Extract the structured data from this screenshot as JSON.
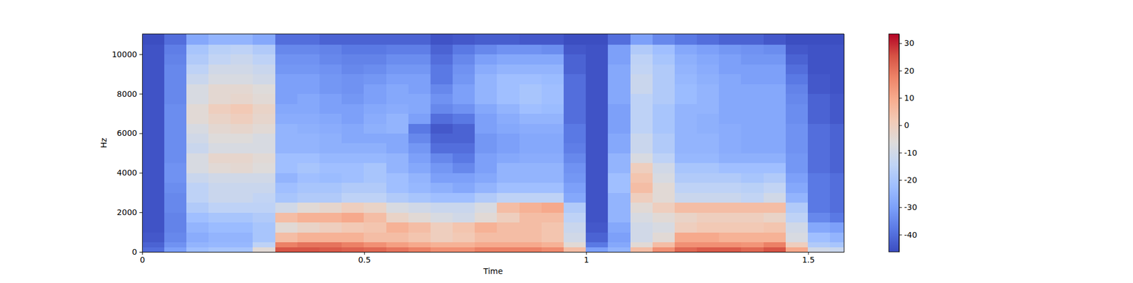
{
  "chart_data": {
    "type": "heatmap",
    "xlabel": "Time",
    "ylabel": "Hz",
    "xlim": [
      0,
      1.581
    ],
    "ylim": [
      0,
      11025
    ],
    "xticks": [
      0,
      0.5,
      1,
      1.5
    ],
    "yticks": [
      0,
      2000,
      4000,
      6000,
      8000,
      10000
    ],
    "colorbar_lim": [
      -46.3,
      33.4
    ],
    "colorbar_ticks": [
      -40,
      -30,
      -20,
      -10,
      0,
      10,
      20,
      30
    ],
    "x": [
      0,
      0.05,
      0.1,
      0.15,
      0.2,
      0.25,
      0.3,
      0.35,
      0.4,
      0.45,
      0.5,
      0.55,
      0.6,
      0.65,
      0.7,
      0.75,
      0.8,
      0.85,
      0.9,
      0.95,
      1.0,
      1.05,
      1.1,
      1.15,
      1.2,
      1.25,
      1.3,
      1.35,
      1.4,
      1.45,
      1.5,
      1.55
    ],
    "y": [
      0,
      250,
      500,
      1000,
      1500,
      2000,
      2500,
      3000,
      3500,
      4000,
      4500,
      5000,
      5500,
      6000,
      6500,
      7000,
      7500,
      8000,
      8500,
      9000,
      9500,
      10000,
      10500
    ],
    "z": [
      [
        -40,
        -42,
        -44,
        -45,
        -45,
        -45,
        -45,
        -45,
        -45,
        -45,
        -45,
        -45,
        -45,
        -45,
        -45,
        -45,
        -45,
        -45,
        -45,
        -45,
        -45,
        -45,
        -46
      ],
      [
        -30,
        -33,
        -35,
        -36,
        -36,
        -35,
        -35,
        -34,
        -33,
        -33,
        -34,
        -34,
        -34,
        -34,
        -34,
        -34,
        -35,
        -35,
        -35,
        -35,
        -36,
        -37,
        -40
      ],
      [
        -22,
        -25,
        -27,
        -25,
        -22,
        -18,
        -15,
        -15,
        -12,
        -8,
        -8,
        -12,
        -10,
        -8,
        -5,
        -5,
        -8,
        -8,
        -12,
        -15,
        -18,
        -20,
        -28
      ],
      [
        -20,
        -24,
        -25,
        -23,
        -20,
        -15,
        -12,
        -12,
        -10,
        -5,
        -3,
        -8,
        -6,
        -4,
        -2,
        0,
        -4,
        -4,
        -8,
        -10,
        -14,
        -16,
        -25
      ],
      [
        -20,
        -24,
        -25,
        -23,
        -20,
        -15,
        -12,
        -12,
        -10,
        -4,
        -3,
        -8,
        -6,
        -3,
        0,
        2,
        -3,
        -4,
        -8,
        -10,
        -12,
        -15,
        -25
      ],
      [
        -5,
        -15,
        -20,
        -20,
        -18,
        -15,
        -14,
        -12,
        -10,
        -6,
        -5,
        -8,
        -8,
        -5,
        -3,
        -2,
        -5,
        -6,
        -10,
        -12,
        -15,
        -18,
        -28
      ],
      [
        25,
        18,
        5,
        -5,
        5,
        -10,
        -20,
        -22,
        -25,
        -22,
        -22,
        -25,
        -25,
        -25,
        -27,
        -28,
        -30,
        -30,
        -30,
        -32,
        -33,
        -35,
        -40
      ],
      [
        25,
        20,
        8,
        -2,
        8,
        -5,
        -18,
        -20,
        -22,
        -20,
        -22,
        -25,
        -25,
        -26,
        -27,
        -28,
        -28,
        -30,
        -30,
        -32,
        -33,
        -35,
        -40
      ],
      [
        24,
        20,
        8,
        0,
        8,
        -3,
        -18,
        -20,
        -23,
        -22,
        -24,
        -26,
        -26,
        -27,
        -28,
        -30,
        -30,
        -32,
        -32,
        -33,
        -35,
        -36,
        -42
      ],
      [
        23,
        18,
        8,
        2,
        10,
        0,
        -15,
        -18,
        -22,
        -22,
        -24,
        -26,
        -28,
        -28,
        -30,
        -30,
        -32,
        -33,
        -33,
        -35,
        -36,
        -38,
        -42
      ],
      [
        22,
        15,
        5,
        3,
        5,
        -2,
        -15,
        -18,
        -20,
        -20,
        -24,
        -26,
        -28,
        -26,
        -27,
        -28,
        -30,
        -30,
        -32,
        -34,
        -36,
        -38,
        -42
      ],
      [
        20,
        12,
        5,
        8,
        -2,
        -8,
        -18,
        -22,
        -22,
        -25,
        -25,
        -28,
        -28,
        -25,
        -25,
        -27,
        -28,
        -28,
        -30,
        -32,
        -34,
        -37,
        -42
      ],
      [
        18,
        10,
        3,
        5,
        -5,
        -10,
        -20,
        -24,
        -25,
        -28,
        -30,
        -32,
        -35,
        -38,
        -30,
        -28,
        -28,
        -30,
        -30,
        -32,
        -34,
        -37,
        -42
      ],
      [
        15,
        8,
        0,
        0,
        -8,
        -12,
        -22,
        -26,
        -30,
        -32,
        -35,
        -40,
        -42,
        -44,
        -40,
        -35,
        -33,
        -35,
        -38,
        -38,
        -40,
        -42,
        -45
      ],
      [
        15,
        8,
        2,
        3,
        -10,
        -12,
        -22,
        -28,
        -30,
        -35,
        -38,
        -40,
        -42,
        -42,
        -38,
        -33,
        -30,
        -30,
        -32,
        -33,
        -35,
        -38,
        -44
      ],
      [
        18,
        10,
        5,
        8,
        -5,
        -8,
        -18,
        -25,
        -28,
        -30,
        -30,
        -32,
        -32,
        -30,
        -30,
        -28,
        -25,
        -25,
        -25,
        -27,
        -30,
        -35,
        -43
      ],
      [
        18,
        10,
        5,
        5,
        0,
        5,
        -15,
        -22,
        -25,
        -25,
        -28,
        -30,
        -30,
        -28,
        -27,
        -25,
        -22,
        -22,
        -22,
        -25,
        -28,
        -33,
        -43
      ],
      [
        18,
        10,
        5,
        5,
        5,
        8,
        -15,
        -22,
        -25,
        -25,
        -27,
        -28,
        -28,
        -27,
        -25,
        -22,
        -20,
        -20,
        -22,
        -25,
        -28,
        -33,
        -44
      ],
      [
        16,
        8,
        3,
        3,
        5,
        10,
        -15,
        -22,
        -25,
        -25,
        -27,
        -28,
        -28,
        -27,
        -25,
        -23,
        -22,
        -22,
        -23,
        -25,
        -28,
        -34,
        -44
      ],
      [
        5,
        -5,
        -10,
        -12,
        -15,
        -18,
        -28,
        -30,
        -32,
        -33,
        -35,
        -37,
        -38,
        -38,
        -40,
        -40,
        -40,
        -40,
        -40,
        -42,
        -42,
        -44,
        -46
      ],
      [
        -30,
        -38,
        -42,
        -44,
        -45,
        -45,
        -45,
        -45,
        -45,
        -45,
        -45,
        -45,
        -45,
        -45,
        -45,
        -45,
        -45,
        -45,
        -45,
        -45,
        -45,
        -45,
        -46
      ],
      [
        -25,
        -28,
        -30,
        -28,
        -25,
        -25,
        -25,
        -22,
        -22,
        -25,
        -25,
        -28,
        -28,
        -30,
        -30,
        -30,
        -28,
        -28,
        -28,
        -28,
        -30,
        -30,
        -40
      ],
      [
        5,
        -5,
        -10,
        -10,
        -8,
        -5,
        0,
        5,
        3,
        0,
        -8,
        -12,
        -12,
        -15,
        -15,
        -15,
        -15,
        -12,
        -12,
        -14,
        -15,
        -18,
        -30
      ],
      [
        15,
        5,
        -5,
        -8,
        -5,
        0,
        -5,
        -5,
        -8,
        -10,
        -15,
        -18,
        -18,
        -20,
        -20,
        -20,
        -18,
        -18,
        -18,
        -18,
        -20,
        -22,
        -35
      ],
      [
        22,
        15,
        10,
        0,
        -2,
        5,
        -12,
        -15,
        -18,
        -20,
        -24,
        -25,
        -25,
        -25,
        -25,
        -25,
        -23,
        -23,
        -24,
        -25,
        -26,
        -28,
        -38
      ],
      [
        24,
        15,
        10,
        2,
        0,
        5,
        -12,
        -15,
        -18,
        -20,
        -24,
        -25,
        -25,
        -26,
        -26,
        -25,
        -25,
        -25,
        -26,
        -27,
        -28,
        -30,
        -40
      ],
      [
        24,
        15,
        8,
        2,
        0,
        5,
        -12,
        -15,
        -18,
        -22,
        -26,
        -27,
        -27,
        -27,
        -28,
        -28,
        -28,
        -28,
        -28,
        -30,
        -30,
        -32,
        -42
      ],
      [
        22,
        14,
        8,
        2,
        0,
        5,
        -14,
        -16,
        -20,
        -22,
        -26,
        -28,
        -28,
        -28,
        -28,
        -28,
        -28,
        -28,
        -30,
        -30,
        -32,
        -33,
        -42
      ],
      [
        25,
        18,
        8,
        3,
        -2,
        5,
        -10,
        -14,
        -18,
        -22,
        -26,
        -28,
        -28,
        -28,
        -28,
        -28,
        -28,
        -28,
        -30,
        -30,
        -32,
        -34,
        -44
      ],
      [
        10,
        0,
        -8,
        -10,
        -15,
        -18,
        -25,
        -28,
        -30,
        -32,
        -32,
        -33,
        -33,
        -33,
        -34,
        -34,
        -35,
        -36,
        -38,
        -40,
        -42,
        -44,
        -46
      ],
      [
        -10,
        -18,
        -22,
        -28,
        -35,
        -38,
        -38,
        -38,
        -38,
        -40,
        -40,
        -40,
        -40,
        -40,
        -42,
        -42,
        -42,
        -44,
        -44,
        -45,
        -45,
        -45,
        -46
      ],
      [
        -12,
        -20,
        -25,
        -30,
        -38,
        -40,
        -40,
        -40,
        -40,
        -42,
        -42,
        -42,
        -42,
        -42,
        -44,
        -44,
        -44,
        -45,
        -45,
        -45,
        -45,
        -45,
        -46
      ]
    ]
  }
}
